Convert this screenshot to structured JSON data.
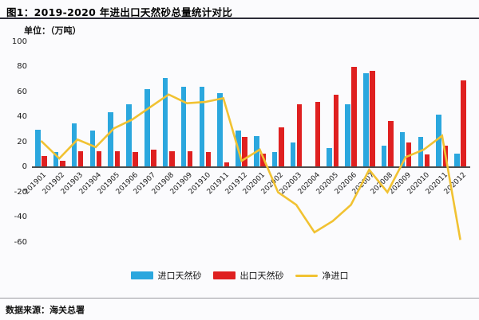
{
  "title": "图1：2019-2020 年进出口天然砂总量统计对比",
  "unit_label": "单位：（万吨）",
  "source": "数据来源：海关总署",
  "colors": {
    "import_bar": "#2BA7DE",
    "export_bar": "#DF2020",
    "net_line": "#F1C232",
    "axis": "#4d4d4d",
    "title_rule": "#2c2c38"
  },
  "chart_data": {
    "type": "bar",
    "title": "图1：2019-2020 年进出口天然砂总量统计对比",
    "ylabel": "单位：（万吨）",
    "xlabel": "",
    "categories": [
      "201901",
      "201902",
      "201903",
      "201904",
      "201905",
      "201906",
      "201907",
      "201908",
      "201909",
      "201910",
      "201911",
      "201912",
      "202001",
      "202002",
      "202003",
      "202004",
      "202005",
      "202006",
      "202007",
      "202008",
      "202009",
      "202010",
      "202011",
      "202012"
    ],
    "series": [
      {
        "name": "进口天然砂",
        "type": "bar",
        "color": "#2BA7DE",
        "values": [
          30,
          12,
          35,
          29,
          44,
          50,
          62,
          71,
          64,
          64,
          59,
          29,
          25,
          12,
          20,
          0,
          15,
          50,
          75,
          17,
          28,
          24,
          42,
          11
        ]
      },
      {
        "name": "出口天然砂",
        "type": "bar",
        "color": "#DF2020",
        "values": [
          9,
          5,
          13,
          13,
          13,
          12,
          14,
          13,
          13,
          12,
          4,
          24,
          11,
          32,
          50,
          52,
          58,
          80,
          77,
          37,
          20,
          10,
          17,
          69
        ]
      },
      {
        "name": "净进口",
        "type": "line",
        "color": "#F1C232",
        "values": [
          21,
          7,
          22,
          16,
          31,
          38,
          48,
          58,
          51,
          52,
          55,
          5,
          14,
          -20,
          -30,
          -52,
          -43,
          -30,
          -2,
          -20,
          8,
          14,
          25,
          -58
        ]
      }
    ],
    "ylim": [
      -60,
      100
    ],
    "yticks": [
      100,
      80,
      60,
      40,
      20,
      0,
      -20,
      -40,
      -60
    ],
    "grid": false,
    "legend_position": "bottom"
  }
}
